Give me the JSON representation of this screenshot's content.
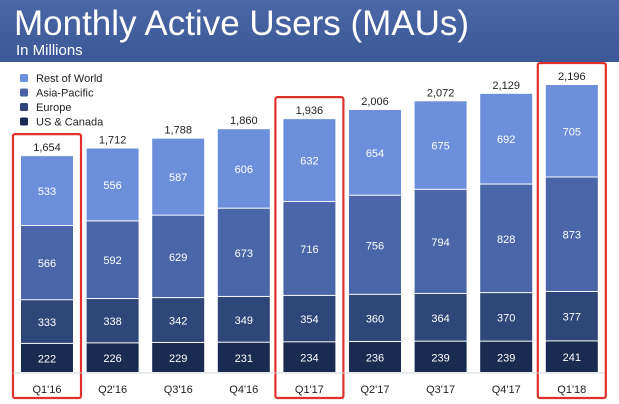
{
  "header": {
    "title": "Monthly Active Users (MAUs)",
    "subtitle": "In Millions"
  },
  "chart_data": {
    "type": "bar",
    "stacked": true,
    "title": "Monthly Active Users (MAUs)",
    "subtitle": "In Millions",
    "xlabel": "",
    "ylabel": "",
    "ylim": [
      0,
      2300
    ],
    "grid": false,
    "legend_position": "top-left",
    "categories": [
      "Q1'16",
      "Q2'16",
      "Q3'16",
      "Q4'16",
      "Q1'17",
      "Q2'17",
      "Q3'17",
      "Q4'17",
      "Q1'18"
    ],
    "series": [
      {
        "name": "US & Canada",
        "color": "#192b51",
        "values": [
          222,
          226,
          229,
          231,
          234,
          236,
          239,
          239,
          241
        ]
      },
      {
        "name": "Europe",
        "color": "#2f4679",
        "values": [
          333,
          338,
          342,
          349,
          354,
          360,
          364,
          370,
          377
        ]
      },
      {
        "name": "Asia-Pacific",
        "color": "#4a66a8",
        "values": [
          566,
          592,
          629,
          673,
          716,
          756,
          794,
          828,
          873
        ]
      },
      {
        "name": "Rest of World",
        "color": "#6b8fdb",
        "values": [
          533,
          556,
          587,
          606,
          632,
          654,
          675,
          692,
          705
        ]
      }
    ],
    "legend_order": [
      "Rest of World",
      "Asia-Pacific",
      "Europe",
      "US & Canada"
    ],
    "totals": [
      "1,654",
      "1,712",
      "1,788",
      "1,860",
      "1,936",
      "2,006",
      "2,072",
      "2,129",
      "2,196"
    ],
    "highlighted": [
      "Q1'16",
      "Q1'17",
      "Q1'18"
    ],
    "highlight_color": "#e0302c"
  }
}
